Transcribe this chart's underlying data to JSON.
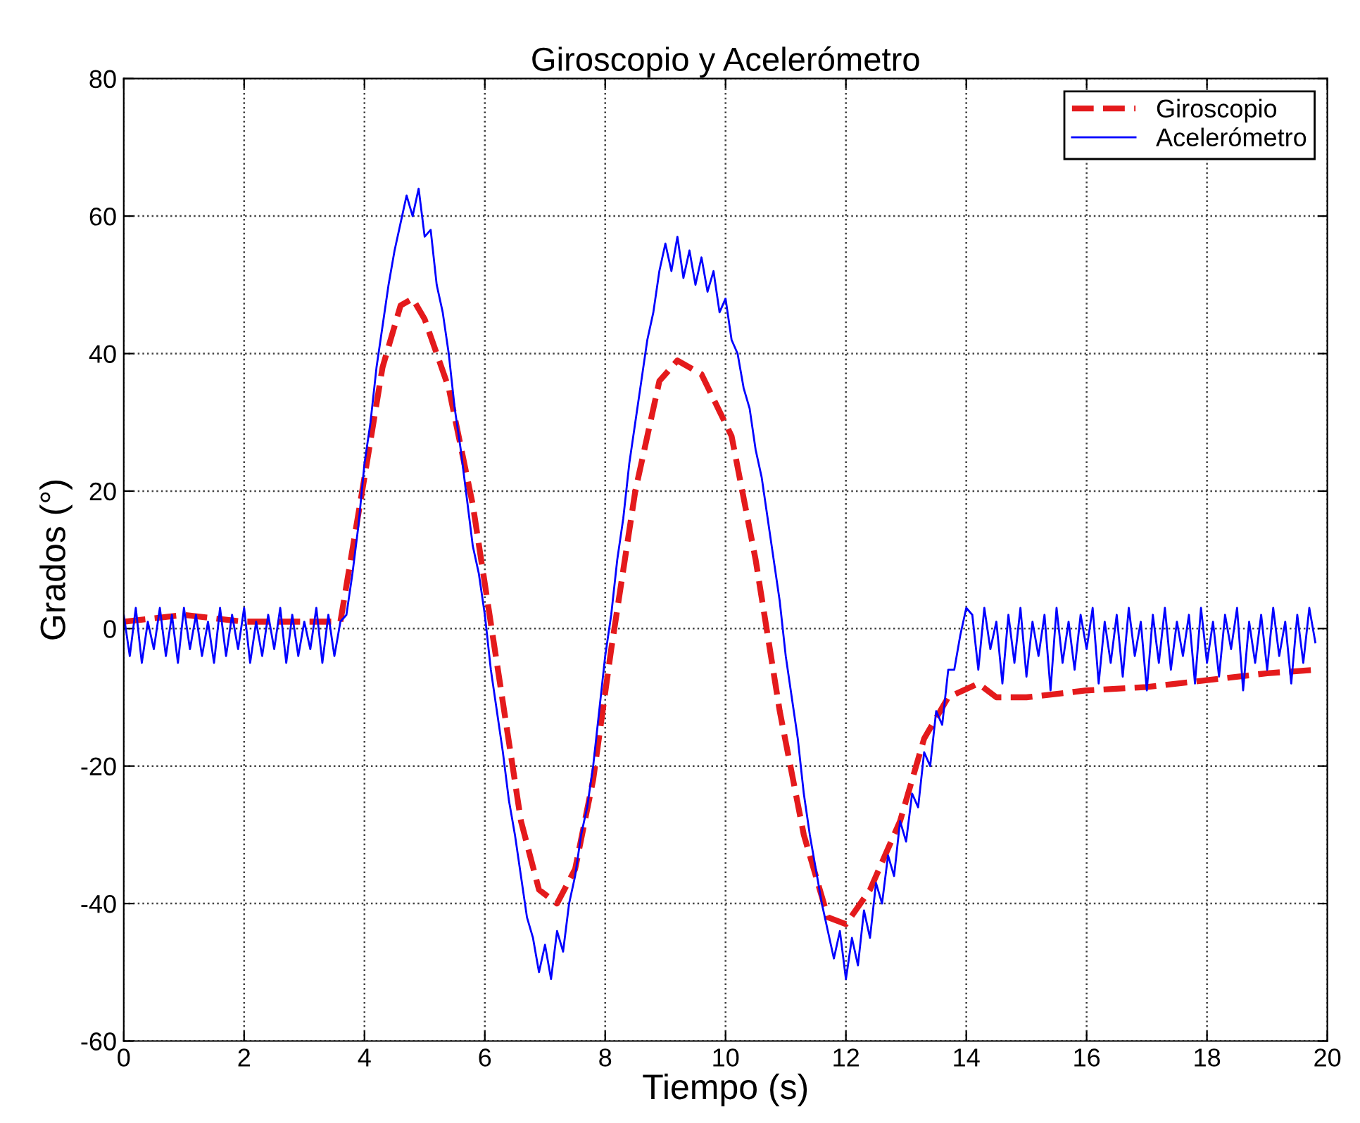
{
  "chart_data": {
    "type": "line",
    "title": "Giroscopio y Acelerómetro",
    "xlabel": "Tiempo (s)",
    "ylabel": "Grados (°)",
    "xlim": [
      0,
      20
    ],
    "xticks": [
      0,
      2,
      4,
      6,
      8,
      10,
      12,
      14,
      16,
      18,
      20
    ],
    "ylim": [
      -60,
      80
    ],
    "yticks": [
      -60,
      -40,
      -20,
      0,
      20,
      40,
      60,
      80
    ],
    "grid": true,
    "legend": "top right",
    "series": [
      {
        "name": "Giroscopio",
        "color": "#e41a1c",
        "line_style": "dashed",
        "x": [
          0,
          1,
          2,
          3,
          3.6,
          4.0,
          4.3,
          4.6,
          4.8,
          5.0,
          5.4,
          5.8,
          6.2,
          6.6,
          6.9,
          7.2,
          7.5,
          7.8,
          8.1,
          8.5,
          8.9,
          9.2,
          9.6,
          10.1,
          10.5,
          10.9,
          11.3,
          11.7,
          12.0,
          12.4,
          12.9,
          13.3,
          13.7,
          14.2,
          14.5,
          15,
          16,
          17,
          18,
          19,
          19.8
        ],
        "values": [
          1,
          2,
          1,
          1,
          1,
          22,
          38,
          47,
          48,
          45,
          35,
          18,
          -5,
          -28,
          -38,
          -40,
          -35,
          -22,
          -3,
          20,
          36,
          39,
          37,
          28,
          10,
          -12,
          -30,
          -42,
          -43,
          -38,
          -28,
          -16,
          -10,
          -8,
          -10,
          -10,
          -9,
          -8.5,
          -7.5,
          -6.5,
          -6
        ]
      },
      {
        "name": "Acelerómetro",
        "color": "#0000ff",
        "line_style": "solid",
        "x": [
          0.0,
          0.1,
          0.2,
          0.3,
          0.4,
          0.5,
          0.6,
          0.7,
          0.8,
          0.9,
          1.0,
          1.1,
          1.2,
          1.3,
          1.4,
          1.5,
          1.6,
          1.7,
          1.8,
          1.9,
          2.0,
          2.1,
          2.2,
          2.3,
          2.4,
          2.5,
          2.6,
          2.7,
          2.8,
          2.9,
          3.0,
          3.1,
          3.2,
          3.3,
          3.4,
          3.5,
          3.6,
          3.7,
          3.8,
          3.9,
          4.0,
          4.1,
          4.2,
          4.3,
          4.4,
          4.5,
          4.6,
          4.7,
          4.8,
          4.9,
          5.0,
          5.1,
          5.2,
          5.3,
          5.4,
          5.5,
          5.6,
          5.7,
          5.8,
          5.9,
          6.0,
          6.1,
          6.2,
          6.3,
          6.4,
          6.5,
          6.6,
          6.7,
          6.8,
          6.9,
          7.0,
          7.1,
          7.2,
          7.3,
          7.4,
          7.5,
          7.6,
          7.7,
          7.8,
          7.9,
          8.0,
          8.1,
          8.2,
          8.3,
          8.4,
          8.5,
          8.6,
          8.7,
          8.8,
          8.9,
          9.0,
          9.1,
          9.2,
          9.3,
          9.4,
          9.5,
          9.6,
          9.7,
          9.8,
          9.9,
          10.0,
          10.1,
          10.2,
          10.3,
          10.4,
          10.5,
          10.6,
          10.7,
          10.8,
          10.9,
          11.0,
          11.1,
          11.2,
          11.3,
          11.4,
          11.5,
          11.6,
          11.7,
          11.8,
          11.9,
          12.0,
          12.1,
          12.2,
          12.3,
          12.4,
          12.5,
          12.6,
          12.7,
          12.8,
          12.9,
          13.0,
          13.1,
          13.2,
          13.3,
          13.4,
          13.5,
          13.6,
          13.7,
          13.8,
          13.9,
          14.0,
          14.1,
          14.2,
          14.3,
          14.4,
          14.5,
          14.6,
          14.7,
          14.8,
          14.9,
          15.0,
          15.1,
          15.2,
          15.3,
          15.4,
          15.5,
          15.6,
          15.7,
          15.8,
          15.9,
          16.0,
          16.1,
          16.2,
          16.3,
          16.4,
          16.5,
          16.6,
          16.7,
          16.8,
          16.9,
          17.0,
          17.1,
          17.2,
          17.3,
          17.4,
          17.5,
          17.6,
          17.7,
          17.8,
          17.9,
          18.0,
          18.1,
          18.2,
          18.3,
          18.4,
          18.5,
          18.6,
          18.7,
          18.8,
          18.9,
          19.0,
          19.1,
          19.2,
          19.3,
          19.4,
          19.5,
          19.6,
          19.7,
          19.8
        ],
        "values": [
          2,
          -4,
          3,
          -5,
          1,
          -3,
          3,
          -4,
          2,
          -5,
          3,
          -3,
          2,
          -4,
          1,
          -5,
          3,
          -4,
          2,
          -3,
          3,
          -5,
          1,
          -4,
          2,
          -3,
          3,
          -5,
          2,
          -4,
          1,
          -3,
          3,
          -5,
          2,
          -4,
          1,
          2,
          8,
          15,
          24,
          30,
          38,
          44,
          50,
          55,
          59,
          63,
          60,
          64,
          57,
          58,
          50,
          46,
          40,
          32,
          26,
          19,
          12,
          8,
          2,
          -6,
          -12,
          -18,
          -25,
          -30,
          -36,
          -42,
          -45,
          -50,
          -46,
          -51,
          -44,
          -47,
          -40,
          -36,
          -30,
          -26,
          -20,
          -12,
          -4,
          2,
          10,
          16,
          24,
          30,
          36,
          42,
          46,
          52,
          56,
          52,
          57,
          51,
          55,
          50,
          54,
          49,
          52,
          46,
          48,
          42,
          40,
          35,
          32,
          26,
          22,
          16,
          10,
          4,
          -4,
          -10,
          -16,
          -24,
          -30,
          -35,
          -40,
          -44,
          -48,
          -44,
          -51,
          -45,
          -49,
          -41,
          -45,
          -37,
          -40,
          -33,
          -36,
          -28,
          -31,
          -24,
          -26,
          -18,
          -20,
          -12,
          -14,
          -6,
          -6,
          -1,
          3,
          2,
          -6,
          3,
          -3,
          1,
          -8,
          2,
          -5,
          3,
          -7,
          1,
          -4,
          2,
          -9,
          3,
          -5,
          1,
          -6,
          2,
          -3,
          3,
          -8,
          1,
          -5,
          2,
          -7,
          3,
          -4,
          1,
          -9,
          2,
          -5,
          3,
          -6,
          1,
          -4,
          2,
          -8,
          3,
          -5,
          1,
          -7,
          2,
          -3,
          3,
          -9,
          1,
          -5,
          2,
          -6,
          3,
          -4,
          1,
          -8,
          2,
          -5,
          3,
          -2
        ]
      }
    ]
  }
}
